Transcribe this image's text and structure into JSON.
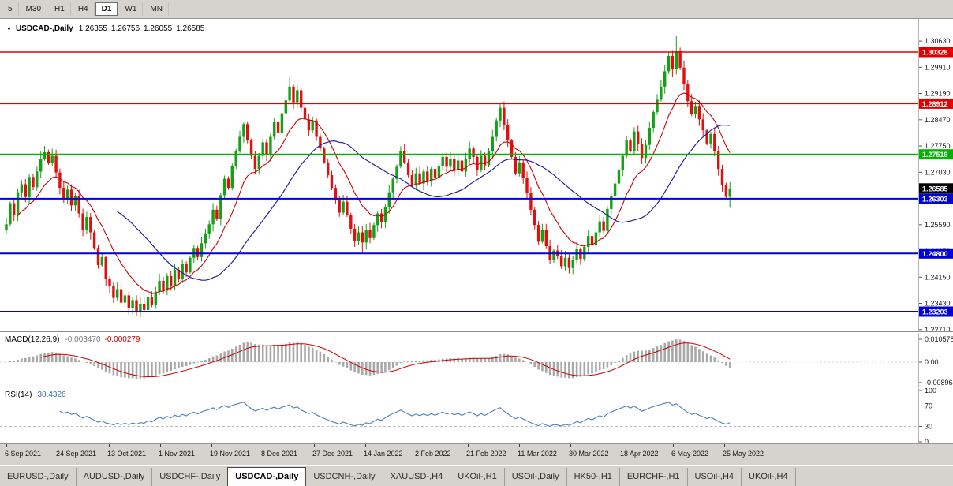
{
  "colors": {
    "up": "#16a016",
    "down": "#e01010",
    "ma_fast": "#cc0000",
    "ma_slow": "#24249c",
    "macd_hist": "#a8a8a8",
    "macd_signal": "#cc0000",
    "rsi_line": "#4a7ebb",
    "level_red": "#e00000",
    "level_green": "#00b400",
    "level_blue": "#0000d8",
    "price_box": "#000000",
    "chrome": "#d6d3ce"
  },
  "toolbar": {
    "timeframes": [
      {
        "label": "5",
        "active": false
      },
      {
        "label": "M30",
        "active": false
      },
      {
        "label": "H1",
        "active": false
      },
      {
        "label": "H4",
        "active": false
      },
      {
        "label": "D1",
        "active": true
      },
      {
        "label": "W1",
        "active": false
      },
      {
        "label": "MN",
        "active": false
      }
    ]
  },
  "chart": {
    "icon": "▼",
    "title": "USDCAD-,Daily",
    "open": "1.26355",
    "high": "1.26756",
    "low": "1.26055",
    "close": "1.26585",
    "y_axis_labels": [
      "1.30630",
      "1.29910",
      "1.29190",
      "1.28470",
      "1.27750",
      "1.27030",
      "1.26310",
      "1.25590",
      "1.24870",
      "1.24150",
      "1.23430",
      "1.22710"
    ],
    "x_axis_labels": [
      "6 Sep 2021",
      "24 Sep 2021",
      "13 Oct 2021",
      "1 Nov 2021",
      "19 Nov 2021",
      "8 Dec 2021",
      "27 Dec 2021",
      "14 Jan 2022",
      "2 Feb 2022",
      "21 Feb 2022",
      "11 Mar 2022",
      "30 Mar 2022",
      "18 Apr 2022",
      "6 May 2022",
      "25 May 2022"
    ]
  },
  "chart_data": {
    "type": "candlestick",
    "symbol": "USDCAD",
    "timeframe": "Daily",
    "price_axis_range": {
      "min": 1.2271,
      "max": 1.3063
    },
    "levels": [
      {
        "price": 1.30328,
        "label": "1.30328",
        "color": "red"
      },
      {
        "price": 1.28912,
        "label": "1.28912",
        "color": "red"
      },
      {
        "price": 1.27519,
        "label": "1.27519",
        "color": "green"
      },
      {
        "price": 1.26303,
        "label": "1.26303",
        "color": "blue"
      },
      {
        "price": 1.248,
        "label": "1.24800",
        "color": "blue"
      },
      {
        "price": 1.23203,
        "label": "1.23203",
        "color": "blue"
      }
    ],
    "current_price": {
      "value": 1.26585,
      "label": "1.26585"
    },
    "last_candle": {
      "open": 1.26355,
      "high": 1.26756,
      "low": 1.26055,
      "close": 1.26585
    },
    "closes": [
      1.256,
      1.2618,
      1.2585,
      1.2648,
      1.267,
      1.2635,
      1.269,
      1.2662,
      1.2705,
      1.274,
      1.2758,
      1.2728,
      1.2748,
      1.2702,
      1.266,
      1.2628,
      1.2655,
      1.2612,
      1.2638,
      1.259,
      1.2545,
      1.258,
      1.2538,
      1.2495,
      1.2448,
      1.247,
      1.241,
      1.239,
      1.2358,
      1.2382,
      1.2345,
      1.2365,
      1.233,
      1.2352,
      1.2318,
      1.2342,
      1.2325,
      1.236,
      1.2338,
      1.2375,
      1.2405,
      1.2378,
      1.2418,
      1.2392,
      1.2435,
      1.241,
      1.2452,
      1.2428,
      1.2468,
      1.2495,
      1.247,
      1.2508,
      1.2535,
      1.256,
      1.26,
      1.2575,
      1.264,
      1.2685,
      1.266,
      1.272,
      1.2762,
      1.28,
      1.2835,
      1.279,
      1.2748,
      1.2712,
      1.2748,
      1.2785,
      1.2752,
      1.28,
      1.284,
      1.2812,
      1.2865,
      1.29,
      1.2938,
      1.2895,
      1.2928,
      1.288,
      1.2848,
      1.2818,
      1.2845,
      1.28,
      1.2768,
      1.273,
      1.2695,
      1.266,
      1.2628,
      1.2592,
      1.2622,
      1.2585,
      1.2548,
      1.2515,
      1.2538,
      1.251,
      1.2545,
      1.2522,
      1.2558,
      1.259,
      1.2565,
      1.2608,
      1.2648,
      1.2685,
      1.2718,
      1.2762,
      1.273,
      1.2695,
      1.2668,
      1.27,
      1.2672,
      1.2705,
      1.268,
      1.2712,
      1.2688,
      1.272,
      1.2745,
      1.2718,
      1.274,
      1.271,
      1.2735,
      1.2705,
      1.274,
      1.2768,
      1.2745,
      1.271,
      1.2748,
      1.2722,
      1.2762,
      1.28,
      1.2845,
      1.288,
      1.2832,
      1.279,
      1.2745,
      1.27,
      1.273,
      1.2688,
      1.2645,
      1.26,
      1.2558,
      1.2512,
      1.2545,
      1.25,
      1.2462,
      1.2488,
      1.2472,
      1.2445,
      1.2468,
      1.244,
      1.2462,
      1.2492,
      1.2465,
      1.2498,
      1.2528,
      1.2502,
      1.2538,
      1.2568,
      1.2542,
      1.2602,
      1.2638,
      1.2672,
      1.271,
      1.2748,
      1.279,
      1.2762,
      1.2815,
      1.278,
      1.2742,
      1.2778,
      1.2825,
      1.2868,
      1.2902,
      1.2938,
      1.298,
      1.3022,
      1.2985,
      1.3035,
      1.299,
      1.2945,
      1.2898,
      1.2862,
      1.2885,
      1.2848,
      1.2818,
      1.2782,
      1.2808,
      1.276,
      1.2712,
      1.2668,
      1.26355,
      1.26585
    ],
    "extremes": [
      {
        "i": 34,
        "low": 1.2308
      },
      {
        "i": 74,
        "high": 1.2964
      },
      {
        "i": 93,
        "low": 1.2482
      },
      {
        "i": 147,
        "low": 1.2425
      },
      {
        "i": 175,
        "high": 1.3076
      },
      {
        "i": 189,
        "high": 1.26756,
        "low": 1.26055
      }
    ]
  },
  "macd": {
    "label": "MACD(12,26,9)",
    "value": "-0.003470",
    "signal": "-0.000279",
    "fast": 12,
    "slow": 26,
    "signal_period": 9,
    "axis_labels": [
      "0.010578",
      "0.00",
      "-0.008964"
    ]
  },
  "rsi": {
    "label": "RSI(14)",
    "value": "38.4326",
    "period": 14,
    "levels": [
      70,
      30
    ],
    "axis_labels": [
      "100",
      "70",
      "30",
      "0"
    ]
  },
  "tabs": [
    {
      "label": "EURUSD-,Daily",
      "active": false
    },
    {
      "label": "AUDUSD-,Daily",
      "active": false
    },
    {
      "label": "USDCHF-,Daily",
      "active": false
    },
    {
      "label": "USDCAD-,Daily",
      "active": true
    },
    {
      "label": "USDCNH-,Daily",
      "active": false
    },
    {
      "label": "XAUUSD-,H4",
      "active": false
    },
    {
      "label": "UKOil-,H1",
      "active": false
    },
    {
      "label": "USOil-,Daily",
      "active": false
    },
    {
      "label": "HK50-,H1",
      "active": false
    },
    {
      "label": "EURCHF-,H1",
      "active": false
    },
    {
      "label": "USOil-,H4",
      "active": false
    },
    {
      "label": "UKOil-,H4",
      "active": false
    }
  ]
}
